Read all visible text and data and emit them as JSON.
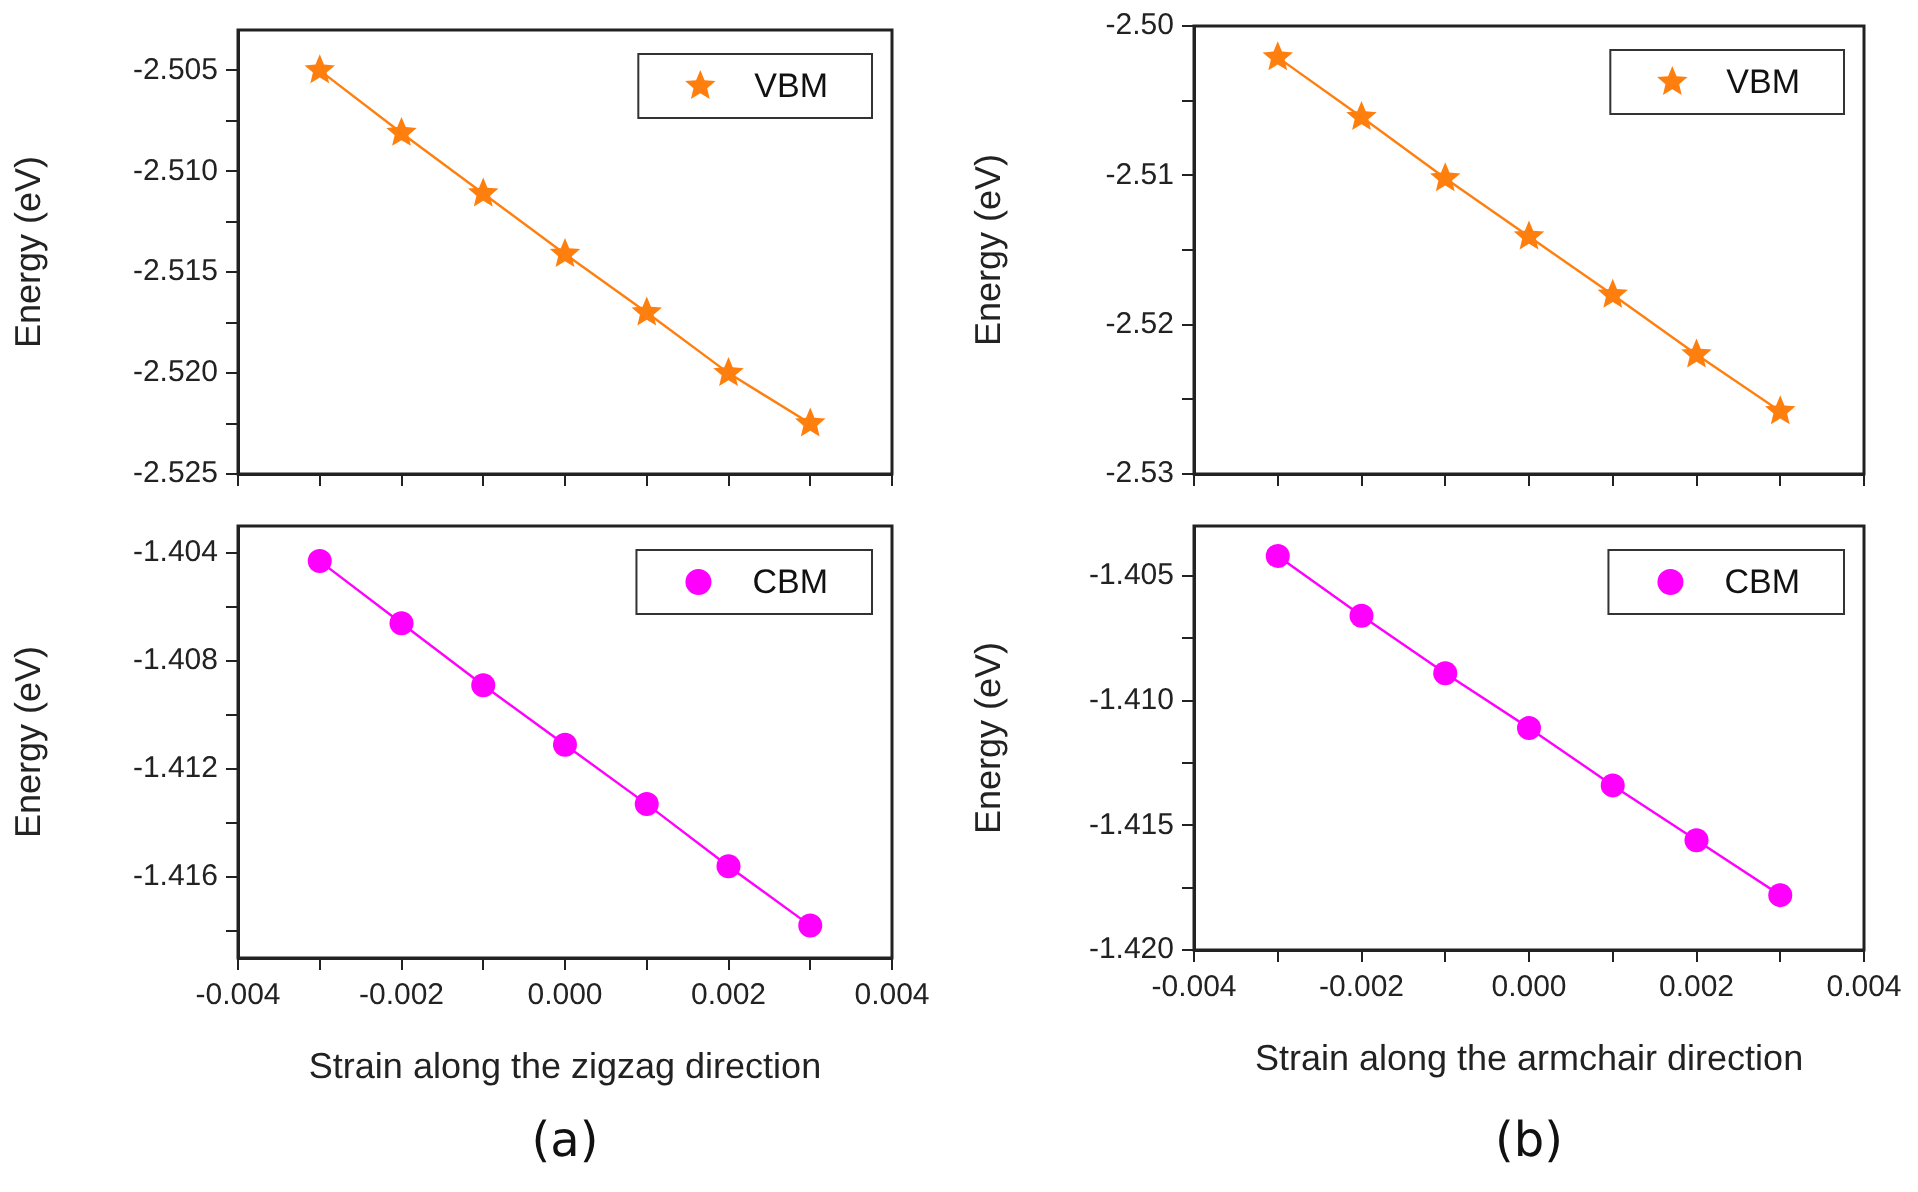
{
  "chart_data": [
    {
      "type": "line",
      "ylabel": "Energy (eV)",
      "x": [
        -0.003,
        -0.002,
        -0.001,
        0,
        0.001,
        0.002,
        0.003
      ],
      "xlim": [
        -0.004,
        0.004
      ],
      "xticks": [
        -0.004,
        {
          "value": -0.003,
          "label": null
        },
        -0.002,
        {
          "value": -0.001,
          "label": null
        },
        0,
        {
          "value": 0.001,
          "label": null
        },
        0.002,
        {
          "value": 0.003,
          "label": null
        },
        0.004
      ],
      "ylim": [
        -2.525,
        -2.503
      ],
      "yticks": [
        -2.525,
        {
          "value": -2.5225,
          "label": null
        },
        {
          "value": -2.52,
          "label": "-2.520"
        },
        {
          "value": -2.5175,
          "label": null
        },
        -2.515,
        {
          "value": -2.5125,
          "label": null
        },
        {
          "value": -2.51,
          "label": "-2.510"
        },
        {
          "value": -2.5075,
          "label": null
        },
        -2.505
      ],
      "tick_labels": "y",
      "legend": "top right",
      "marker": "star",
      "line_style": "solid",
      "series": [
        {
          "name": "VBM",
          "color": "#ff7f0e",
          "values": [
            -2.505,
            -2.5081,
            -2.5111,
            -2.5141,
            -2.517,
            -2.52,
            -2.5225
          ]
        }
      ]
    },
    {
      "type": "line",
      "xlabel": "Strain along the zigzag direction",
      "ylabel": "Energy (eV)",
      "x": [
        -0.003,
        -0.002,
        -0.001,
        0,
        0.001,
        0.002,
        0.003
      ],
      "xlim": [
        -0.004,
        0.004
      ],
      "xticks": [
        -0.004,
        {
          "value": -0.003,
          "label": null
        },
        -0.002,
        {
          "value": -0.001,
          "label": null
        },
        {
          "value": 0,
          "label": "0.000"
        },
        {
          "value": 0.001,
          "label": null
        },
        0.002,
        {
          "value": 0.003,
          "label": null
        },
        0.004
      ],
      "ylim": [
        -1.419,
        -1.403
      ],
      "yticks": [
        {
          "value": -1.418,
          "label": null
        },
        -1.416,
        {
          "value": -1.414,
          "label": null
        },
        -1.412,
        {
          "value": -1.41,
          "label": null
        },
        -1.408,
        {
          "value": -1.406,
          "label": null
        },
        -1.404
      ],
      "legend": "top right",
      "marker": "circle",
      "line_style": "solid",
      "annotations": [
        "(a)"
      ],
      "series": [
        {
          "name": "CBM",
          "color": "#ff00ff",
          "values": [
            -1.4043,
            -1.4066,
            -1.4089,
            -1.4111,
            -1.4133,
            -1.4156,
            -1.4178
          ]
        }
      ]
    },
    {
      "type": "line",
      "ylabel": "Energy (eV)",
      "x": [
        -0.003,
        -0.002,
        -0.001,
        0,
        0.001,
        0.002,
        0.003
      ],
      "xlim": [
        -0.004,
        0.004
      ],
      "xticks": [
        -0.004,
        {
          "value": -0.003,
          "label": null
        },
        -0.002,
        {
          "value": -0.001,
          "label": null
        },
        0,
        {
          "value": 0.001,
          "label": null
        },
        0.002,
        {
          "value": 0.003,
          "label": null
        },
        0.004
      ],
      "ylim": [
        -2.53,
        -2.5
      ],
      "yticks": [
        -2.53,
        {
          "value": -2.525,
          "label": null
        },
        -2.52,
        {
          "value": -2.515,
          "label": null
        },
        -2.51,
        {
          "value": -2.505,
          "label": null
        },
        {
          "value": -2.5,
          "label": "-2.50"
        }
      ],
      "tick_labels": "y",
      "legend": "top right",
      "marker": "star",
      "line_style": "solid",
      "series": [
        {
          "name": "VBM",
          "color": "#ff7f0e",
          "values": [
            -2.5021,
            -2.5061,
            -2.5102,
            -2.5141,
            -2.518,
            -2.522,
            -2.5258
          ]
        }
      ]
    },
    {
      "type": "line",
      "xlabel": "Strain along the armchair direction",
      "ylabel": "Energy (eV)",
      "x": [
        -0.003,
        -0.002,
        -0.001,
        0,
        0.001,
        0.002,
        0.003
      ],
      "xlim": [
        -0.004,
        0.004
      ],
      "xticks": [
        -0.004,
        {
          "value": -0.003,
          "label": null
        },
        -0.002,
        {
          "value": -0.001,
          "label": null
        },
        {
          "value": 0,
          "label": "0.000"
        },
        {
          "value": 0.001,
          "label": null
        },
        0.002,
        {
          "value": 0.003,
          "label": null
        },
        0.004
      ],
      "ylim": [
        -1.42,
        -1.403
      ],
      "yticks": [
        {
          "value": -1.42,
          "label": "-1.420"
        },
        {
          "value": -1.4175,
          "label": null
        },
        -1.415,
        {
          "value": -1.4125,
          "label": null
        },
        {
          "value": -1.41,
          "label": "-1.410"
        },
        {
          "value": -1.4075,
          "label": null
        },
        -1.405
      ],
      "legend": "top right",
      "marker": "circle",
      "line_style": "solid",
      "annotations": [
        "(b)"
      ],
      "series": [
        {
          "name": "CBM",
          "color": "#ff00ff",
          "values": [
            -1.4042,
            -1.4066,
            -1.4089,
            -1.4111,
            -1.4134,
            -1.4156,
            -1.4178
          ]
        }
      ]
    }
  ]
}
